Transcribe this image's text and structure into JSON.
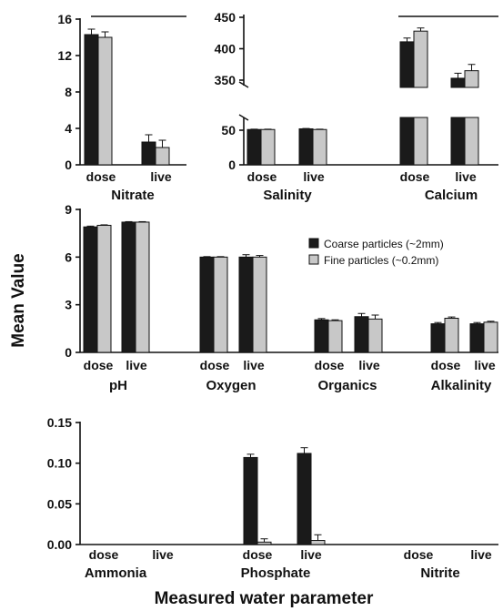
{
  "chart_data": {
    "type": "bar",
    "ylabel": "Mean Value",
    "xlabel": "Measured water parameter",
    "colors": {
      "coarse": "#1a1a1a",
      "fine": "#c8c8c8"
    },
    "legend": {
      "placement": "middle-panel-right",
      "entries": [
        {
          "key": "coarse",
          "label": "Coarse particles (~2mm)"
        },
        {
          "key": "fine",
          "label": "Fine particles (~0.2mm)"
        }
      ]
    },
    "panels": [
      {
        "id": "nitrate",
        "yticks": [
          "0",
          "4",
          "8",
          "12",
          "16"
        ],
        "ylim": [
          0,
          16
        ],
        "params": [
          {
            "label": "Nitrate",
            "categories": [
              "dose",
              "live"
            ],
            "series": {
              "coarse": [
                14.3,
                2.5
              ],
              "fine": [
                14.0,
                1.9
              ]
            },
            "errors": {
              "coarse": [
                0.6,
                0.8
              ],
              "fine": [
                0.6,
                0.8
              ]
            }
          }
        ]
      },
      {
        "id": "salinity-calcium",
        "broken_axis": true,
        "yticks_lower": [
          "0",
          "50"
        ],
        "yticks_upper": [
          "350",
          "400",
          "450"
        ],
        "ylim_lower": [
          0,
          65
        ],
        "ylim_upper": [
          330,
          450
        ],
        "params": [
          {
            "label": "Salinity",
            "categories": [
              "dose",
              "live"
            ],
            "series": {
              "coarse": [
                51,
                52
              ],
              "fine": [
                51,
                51
              ]
            },
            "errors": {
              "coarse": [
                0.5,
                0.5
              ],
              "fine": [
                0.5,
                0.5
              ]
            }
          },
          {
            "label": "Calcium",
            "categories": [
              "dose",
              "live"
            ],
            "series": {
              "coarse": [
                411,
                353
              ],
              "fine": [
                428,
                365
              ]
            },
            "errors": {
              "coarse": [
                6,
                8
              ],
              "fine": [
                5,
                10
              ]
            }
          }
        ]
      },
      {
        "id": "middle",
        "yticks": [
          "0",
          "3",
          "6",
          "9"
        ],
        "ylim": [
          0,
          9
        ],
        "params": [
          {
            "label": "pH",
            "categories": [
              "dose",
              "live"
            ],
            "series": {
              "coarse": [
                7.9,
                8.2
              ],
              "fine": [
                8.0,
                8.2
              ]
            },
            "errors": {
              "coarse": [
                0.05,
                0.03
              ],
              "fine": [
                0.03,
                0.03
              ]
            }
          },
          {
            "label": "Oxygen",
            "categories": [
              "dose",
              "live"
            ],
            "series": {
              "coarse": [
                6.0,
                6.0
              ],
              "fine": [
                6.0,
                6.0
              ]
            },
            "errors": {
              "coarse": [
                0.03,
                0.15
              ],
              "fine": [
                0.03,
                0.1
              ]
            }
          },
          {
            "label": "Organics",
            "categories": [
              "dose",
              "live"
            ],
            "series": {
              "coarse": [
                2.05,
                2.25
              ],
              "fine": [
                2.0,
                2.1
              ]
            },
            "errors": {
              "coarse": [
                0.08,
                0.2
              ],
              "fine": [
                0.05,
                0.25
              ]
            }
          },
          {
            "label": "Alkalinity",
            "categories": [
              "dose",
              "live"
            ],
            "series": {
              "coarse": [
                1.8,
                1.8
              ],
              "fine": [
                2.15,
                1.9
              ]
            },
            "errors": {
              "coarse": [
                0.08,
                0.08
              ],
              "fine": [
                0.08,
                0.06
              ]
            }
          }
        ]
      },
      {
        "id": "bottom",
        "yticks": [
          "0.00",
          "0.05",
          "0.10",
          "0.15"
        ],
        "ylim": [
          0,
          0.15
        ],
        "params": [
          {
            "label": "Ammonia",
            "categories": [
              "dose",
              "live"
            ],
            "series": {
              "coarse": [
                0,
                0
              ],
              "fine": [
                0,
                0
              ]
            },
            "errors": {
              "coarse": [
                0,
                0
              ],
              "fine": [
                0,
                0
              ]
            }
          },
          {
            "label": "Phosphate",
            "categories": [
              "dose",
              "live"
            ],
            "series": {
              "coarse": [
                0.107,
                0.112
              ],
              "fine": [
                0.003,
                0.005
              ]
            },
            "errors": {
              "coarse": [
                0.004,
                0.007
              ],
              "fine": [
                0.004,
                0.007
              ]
            }
          },
          {
            "label": "Nitrite",
            "categories": [
              "dose",
              "live"
            ],
            "series": {
              "coarse": [
                0,
                0
              ],
              "fine": [
                0,
                0
              ]
            },
            "errors": {
              "coarse": [
                0,
                0
              ],
              "fine": [
                0,
                0
              ]
            }
          }
        ]
      }
    ]
  }
}
